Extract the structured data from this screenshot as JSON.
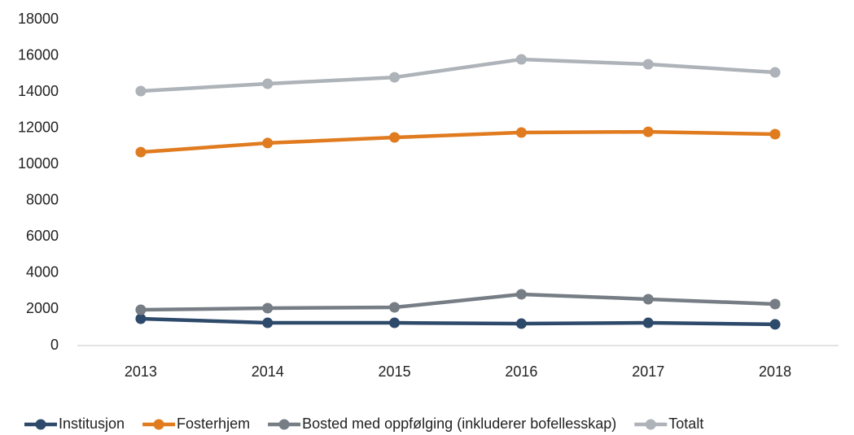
{
  "chart_data": {
    "type": "line",
    "categories": [
      "2013",
      "2014",
      "2015",
      "2016",
      "2017",
      "2018"
    ],
    "series": [
      {
        "name": "Institusjon",
        "color": "#2e4a6b",
        "values": [
          1480,
          1255,
          1255,
          1210,
          1255,
          1170
        ]
      },
      {
        "name": "Fosterhjem",
        "color": "#e07b1f",
        "values": [
          10680,
          11180,
          11490,
          11760,
          11800,
          11670
        ]
      },
      {
        "name": "Bosted med oppfølging (inkluderer bofellesskap)",
        "color": "#767d84",
        "values": [
          1975,
          2065,
          2110,
          2830,
          2560,
          2290
        ]
      },
      {
        "name": "Totalt",
        "color": "#adb3b8",
        "values": [
          14050,
          14455,
          14810,
          15800,
          15530,
          15080
        ]
      }
    ],
    "ylim": [
      0,
      18000
    ],
    "yticks": [
      0,
      2000,
      4000,
      6000,
      8000,
      10000,
      12000,
      14000,
      16000,
      18000
    ],
    "grid": false,
    "legend": "bottom"
  }
}
